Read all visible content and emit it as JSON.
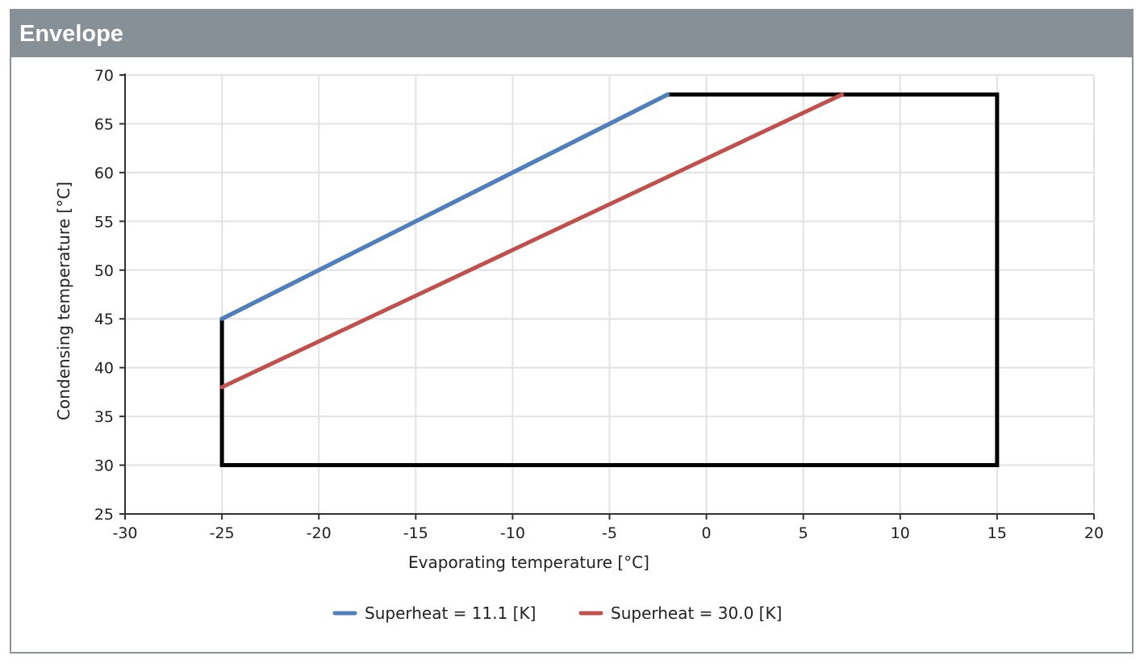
{
  "panel": {
    "title": "Envelope"
  },
  "chart_data": {
    "type": "line",
    "title": "",
    "xlabel": "Evaporating temperature [°C]",
    "ylabel": "Condensing temperature [°C]",
    "xlim": [
      -30,
      20
    ],
    "ylim": [
      25,
      70
    ],
    "x_ticks": [
      -30,
      -25,
      -20,
      -15,
      -10,
      -5,
      0,
      5,
      10,
      15,
      20
    ],
    "y_ticks": [
      25,
      30,
      35,
      40,
      45,
      50,
      55,
      60,
      65,
      70
    ],
    "grid": true,
    "legend_position": "bottom",
    "envelope": {
      "color": "#000000",
      "points": [
        {
          "x": -25,
          "y": 30
        },
        {
          "x": -25,
          "y": 45
        },
        {
          "x": -2,
          "y": 68
        },
        {
          "x": 15,
          "y": 68
        },
        {
          "x": 15,
          "y": 30
        }
      ],
      "closed": true
    },
    "series": [
      {
        "name": "Superheat = 11.1 [K]",
        "color": "#4f7fbd",
        "x": [
          -25,
          -2
        ],
        "y": [
          45,
          68
        ]
      },
      {
        "name": "Superheat = 30.0 [K]",
        "color": "#c0504d",
        "x": [
          -25,
          7
        ],
        "y": [
          38,
          68
        ]
      }
    ]
  }
}
